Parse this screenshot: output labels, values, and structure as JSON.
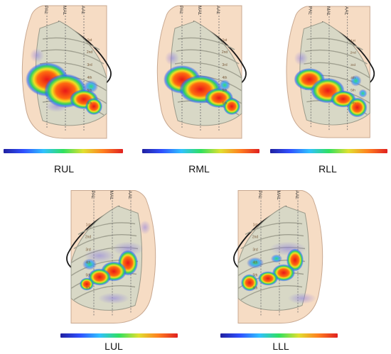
{
  "line_labels_right": [
    "PAL",
    "MAL",
    "AAL"
  ],
  "line_labels_left": [
    "AAL",
    "MAL",
    "PAL"
  ],
  "rib_labels": [
    "1st",
    "2nd",
    "3rd",
    "4th",
    "5th",
    "6th"
  ],
  "colorbar_gradient": [
    "#2020a0",
    "#3050ff",
    "#30c0ff",
    "#30e060",
    "#e0e030",
    "#ff8020",
    "#e02020"
  ],
  "panels": [
    {
      "label": "RUL"
    },
    {
      "label": "RML"
    },
    {
      "label": "RLL"
    },
    {
      "label": "LUL"
    },
    {
      "label": "LLL"
    }
  ]
}
